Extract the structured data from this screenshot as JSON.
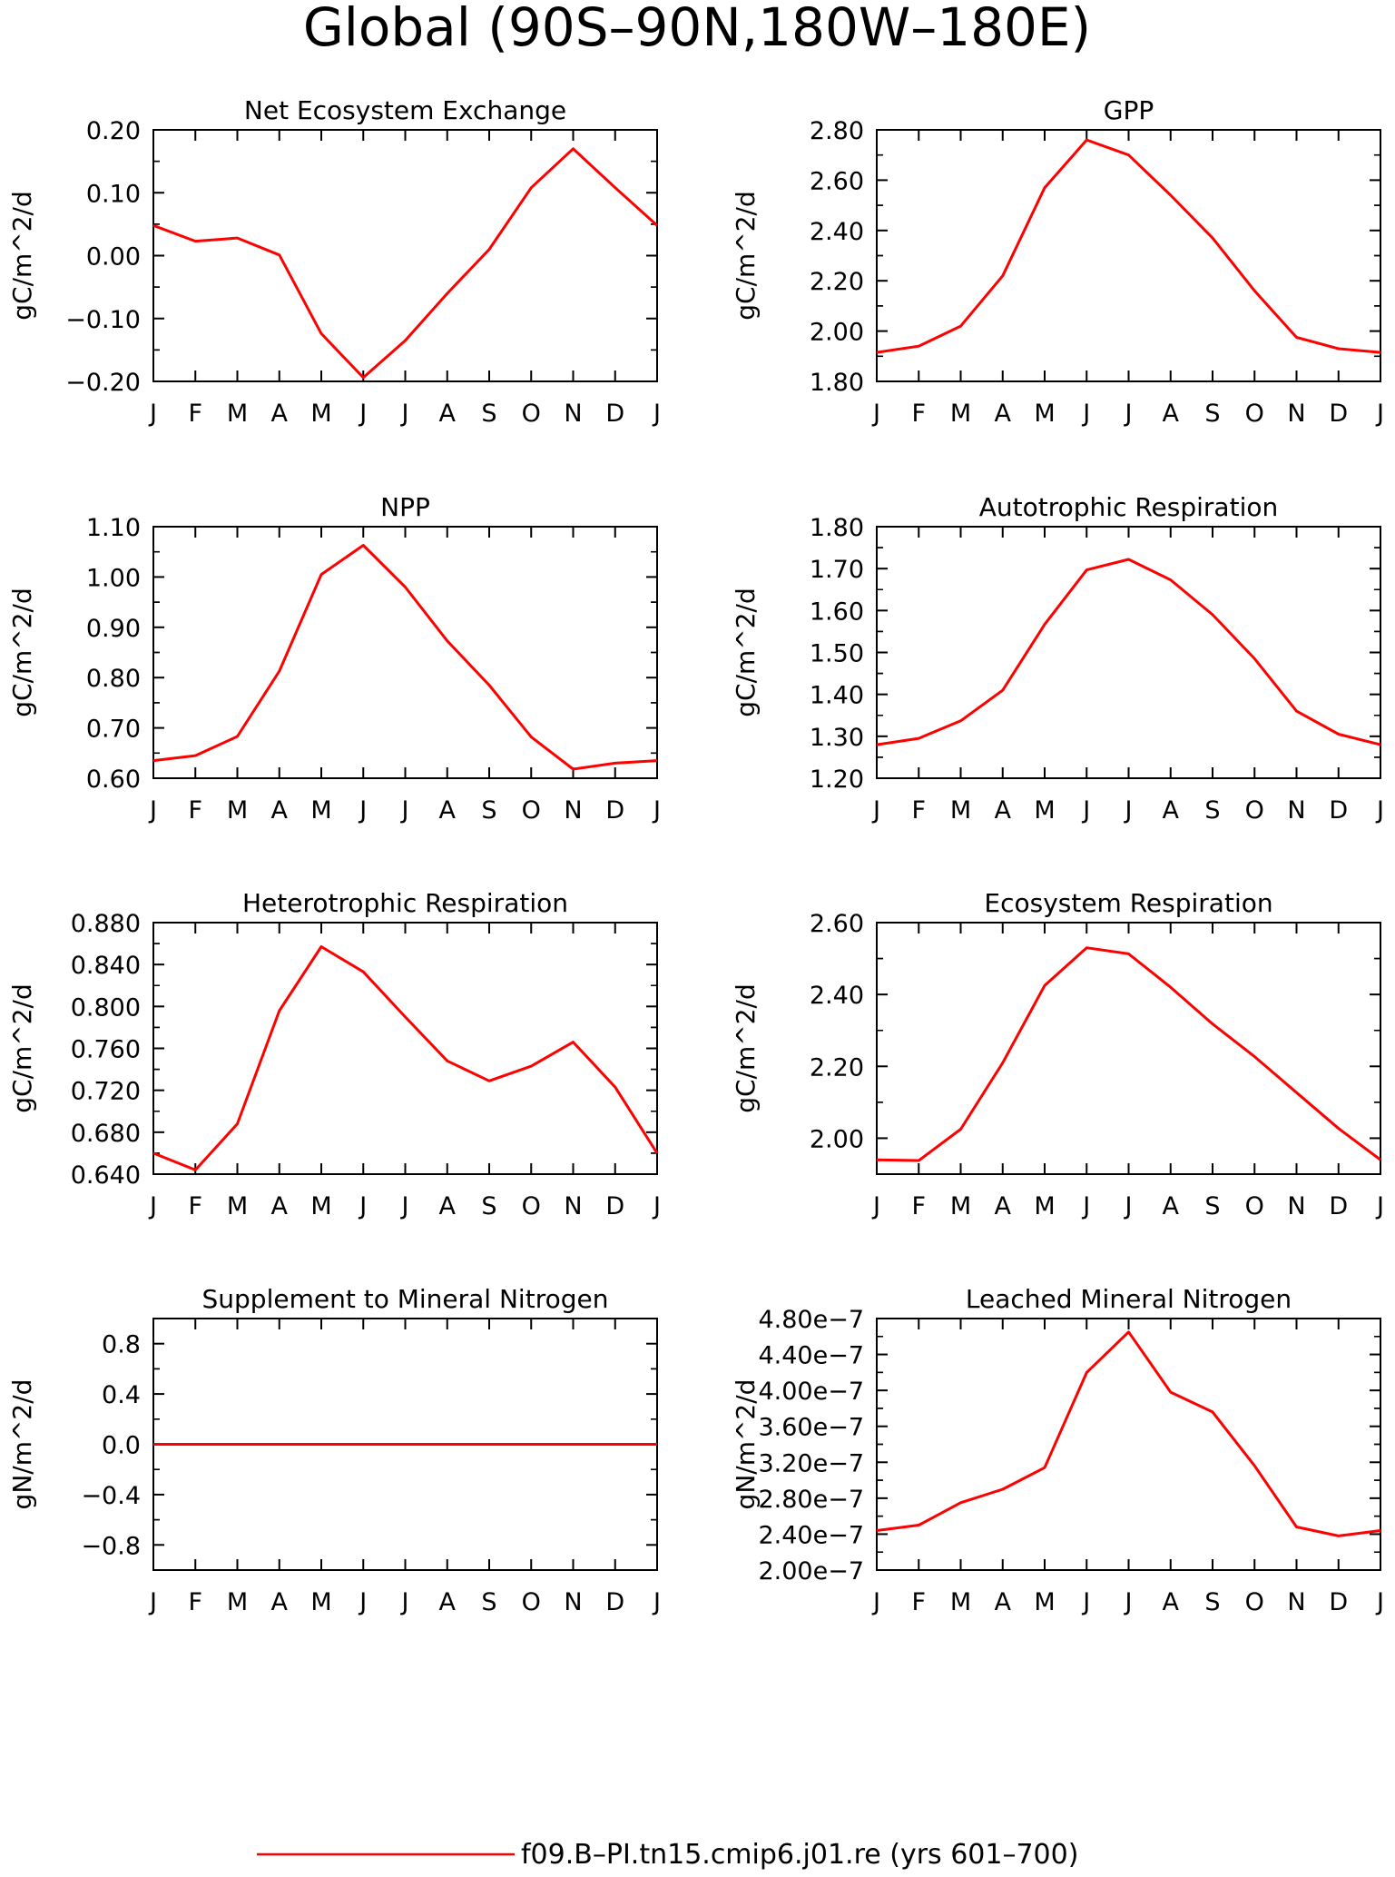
{
  "figure_title": "Global (90S–90N,180W–180E)",
  "legend": {
    "label": "f09.B–PI.tn15.cmip6.j01.re (yrs 601–700)",
    "color": "#ff0000"
  },
  "line_color": "#ff0000",
  "chart_data": [
    {
      "type": "line",
      "title": "Net Ecosystem Exchange",
      "xlabel": "",
      "ylabel": "gC/m^2/d",
      "categories": [
        "J",
        "F",
        "M",
        "A",
        "M",
        "J",
        "J",
        "A",
        "S",
        "O",
        "N",
        "D",
        "J"
      ],
      "ylim": [
        -0.2,
        0.2
      ],
      "yticks": [
        -0.2,
        -0.1,
        0.0,
        0.1,
        0.2
      ],
      "ytick_labels": [
        "−0.20",
        "−0.10",
        "0.00",
        "0.10",
        "0.20"
      ],
      "series": [
        {
          "values": [
            0.048,
            0.023,
            0.028,
            0.001,
            -0.124,
            -0.194,
            -0.135,
            -0.06,
            0.01,
            0.108,
            0.17,
            0.108,
            0.048
          ]
        }
      ]
    },
    {
      "type": "line",
      "title": "GPP",
      "xlabel": "",
      "ylabel": "gC/m^2/d",
      "categories": [
        "J",
        "F",
        "M",
        "A",
        "M",
        "J",
        "J",
        "A",
        "S",
        "O",
        "N",
        "D",
        "J"
      ],
      "ylim": [
        1.8,
        2.8
      ],
      "yticks": [
        1.8,
        2.0,
        2.2,
        2.4,
        2.6,
        2.8
      ],
      "ytick_labels": [
        "1.80",
        "2.00",
        "2.20",
        "2.40",
        "2.60",
        "2.80"
      ],
      "series": [
        {
          "values": [
            1.915,
            1.94,
            2.02,
            2.22,
            2.57,
            2.76,
            2.7,
            2.54,
            2.37,
            2.16,
            1.975,
            1.93,
            1.915
          ]
        }
      ]
    },
    {
      "type": "line",
      "title": "NPP",
      "xlabel": "",
      "ylabel": "gC/m^2/d",
      "categories": [
        "J",
        "F",
        "M",
        "A",
        "M",
        "J",
        "J",
        "A",
        "S",
        "O",
        "N",
        "D",
        "J"
      ],
      "ylim": [
        0.6,
        1.1
      ],
      "yticks": [
        0.6,
        0.7,
        0.8,
        0.9,
        1.0,
        1.1
      ],
      "ytick_labels": [
        "0.60",
        "0.70",
        "0.80",
        "0.90",
        "1.00",
        "1.10"
      ],
      "series": [
        {
          "values": [
            0.635,
            0.645,
            0.683,
            0.813,
            1.005,
            1.063,
            0.98,
            0.873,
            0.785,
            0.682,
            0.618,
            0.63,
            0.635
          ]
        }
      ]
    },
    {
      "type": "line",
      "title": "Autotrophic Respiration",
      "xlabel": "",
      "ylabel": "gC/m^2/d",
      "categories": [
        "J",
        "F",
        "M",
        "A",
        "M",
        "J",
        "J",
        "A",
        "S",
        "O",
        "N",
        "D",
        "J"
      ],
      "ylim": [
        1.2,
        1.8
      ],
      "yticks": [
        1.2,
        1.3,
        1.4,
        1.5,
        1.6,
        1.7,
        1.8
      ],
      "ytick_labels": [
        "1.20",
        "1.30",
        "1.40",
        "1.50",
        "1.60",
        "1.70",
        "1.80"
      ],
      "series": [
        {
          "values": [
            1.28,
            1.295,
            1.337,
            1.41,
            1.567,
            1.697,
            1.722,
            1.673,
            1.59,
            1.485,
            1.36,
            1.305,
            1.28
          ]
        }
      ]
    },
    {
      "type": "line",
      "title": "Heterotrophic Respiration",
      "xlabel": "",
      "ylabel": "gC/m^2/d",
      "categories": [
        "J",
        "F",
        "M",
        "A",
        "M",
        "J",
        "J",
        "A",
        "S",
        "O",
        "N",
        "D",
        "J"
      ],
      "ylim": [
        0.64,
        0.88
      ],
      "yticks": [
        0.64,
        0.68,
        0.72,
        0.76,
        0.8,
        0.84,
        0.88
      ],
      "ytick_labels": [
        "0.640",
        "0.680",
        "0.720",
        "0.760",
        "0.800",
        "0.840",
        "0.880"
      ],
      "series": [
        {
          "values": [
            0.66,
            0.644,
            0.688,
            0.796,
            0.857,
            0.833,
            0.79,
            0.748,
            0.729,
            0.743,
            0.766,
            0.723,
            0.66
          ]
        }
      ]
    },
    {
      "type": "line",
      "title": "Ecosystem Respiration",
      "xlabel": "",
      "ylabel": "gC/m^2/d",
      "categories": [
        "J",
        "F",
        "M",
        "A",
        "M",
        "J",
        "J",
        "A",
        "S",
        "O",
        "N",
        "D",
        "J"
      ],
      "ylim": [
        1.9,
        2.6
      ],
      "yticks": [
        2.0,
        2.2,
        2.4,
        2.6
      ],
      "ytick_labels": [
        "2.00",
        "2.20",
        "2.40",
        "2.60"
      ],
      "series": [
        {
          "values": [
            1.94,
            1.938,
            2.025,
            2.21,
            2.425,
            2.53,
            2.513,
            2.42,
            2.318,
            2.227,
            2.127,
            2.027,
            1.94
          ]
        }
      ]
    },
    {
      "type": "line",
      "title": "Supplement to Mineral Nitrogen",
      "xlabel": "",
      "ylabel": "gN/m^2/d",
      "categories": [
        "J",
        "F",
        "M",
        "A",
        "M",
        "J",
        "J",
        "A",
        "S",
        "O",
        "N",
        "D",
        "J"
      ],
      "ylim": [
        -1.0,
        1.0
      ],
      "yticks": [
        -0.8,
        -0.4,
        0.0,
        0.4,
        0.8
      ],
      "ytick_labels": [
        "−0.8",
        "−0.4",
        "0.0",
        "0.4",
        "0.8"
      ],
      "series": [
        {
          "values": [
            0,
            0,
            0,
            0,
            0,
            0,
            0,
            0,
            0,
            0,
            0,
            0,
            0
          ]
        }
      ]
    },
    {
      "type": "line",
      "title": "Leached Mineral Nitrogen",
      "xlabel": "",
      "ylabel": "gN/m^2/d",
      "categories": [
        "J",
        "F",
        "M",
        "A",
        "M",
        "J",
        "J",
        "A",
        "S",
        "O",
        "N",
        "D",
        "J"
      ],
      "ylim": [
        2e-07,
        4.8e-07
      ],
      "yticks": [
        2e-07,
        2.4e-07,
        2.8e-07,
        3.2e-07,
        3.6e-07,
        4e-07,
        4.4e-07,
        4.8e-07
      ],
      "ytick_labels": [
        "2.00e−7",
        "2.40e−7",
        "2.80e−7",
        "3.20e−7",
        "3.60e−7",
        "4.00e−7",
        "4.40e−7",
        "4.80e−7"
      ],
      "series": [
        {
          "values": [
            2.44e-07,
            2.5e-07,
            2.75e-07,
            2.9e-07,
            3.14e-07,
            4.2e-07,
            4.65e-07,
            3.98e-07,
            3.76e-07,
            3.16e-07,
            2.48e-07,
            2.38e-07,
            2.44e-07
          ]
        }
      ]
    }
  ]
}
